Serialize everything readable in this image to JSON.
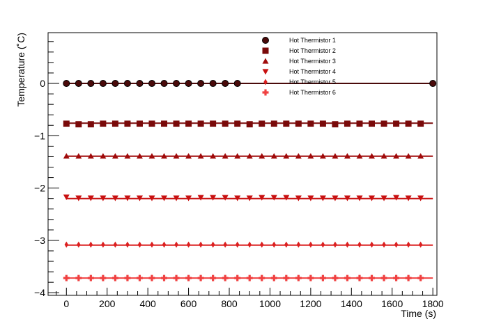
{
  "chart_data": {
    "type": "scatter",
    "title": "",
    "xlabel": "Time (s)",
    "ylabel": "Temperature (˚C)",
    "xlim": [
      -90,
      1820
    ],
    "ylim": [
      -4.05,
      0.97
    ],
    "x_ticks": [
      0,
      200,
      400,
      600,
      800,
      1000,
      1200,
      1400,
      1600,
      1800
    ],
    "x_tick_labels": [
      "0",
      "200",
      "400",
      "600",
      "800",
      "1000",
      "1200",
      "1400",
      "1600",
      "1800"
    ],
    "y_ticks": [
      0,
      -1,
      -2,
      -3,
      -4
    ],
    "y_tick_labels": [
      "0",
      "−1",
      "−2",
      "−3",
      "−4"
    ],
    "grid": false,
    "legend_position": "top-right",
    "series": [
      {
        "name": "Hot Thermistor 1",
        "marker": "circle",
        "color": "#4a0a0a",
        "line_value": 0.0,
        "line_x": [
          0,
          1800
        ],
        "x": [
          0,
          60,
          120,
          180,
          240,
          300,
          360,
          420,
          480,
          540,
          600,
          660,
          720,
          780,
          840,
          1800
        ],
        "y": [
          0,
          0,
          0,
          0,
          0,
          0,
          0,
          0,
          0,
          0,
          0,
          0,
          0,
          0,
          0,
          0
        ]
      },
      {
        "name": "Hot Thermistor 2",
        "marker": "square",
        "color": "#7a0a0a",
        "line_value": -0.76,
        "line_x": [
          0,
          1800
        ],
        "x": [
          0,
          60,
          120,
          180,
          240,
          300,
          360,
          420,
          480,
          540,
          600,
          660,
          720,
          780,
          840,
          900,
          960,
          1020,
          1080,
          1140,
          1200,
          1260,
          1320,
          1380,
          1440,
          1500,
          1560,
          1620,
          1680,
          1740
        ],
        "y": [
          -0.77,
          -0.78,
          -0.78,
          -0.77,
          -0.77,
          -0.77,
          -0.77,
          -0.77,
          -0.77,
          -0.77,
          -0.77,
          -0.77,
          -0.77,
          -0.77,
          -0.77,
          -0.78,
          -0.77,
          -0.77,
          -0.77,
          -0.77,
          -0.77,
          -0.77,
          -0.78,
          -0.77,
          -0.77,
          -0.77,
          -0.77,
          -0.77,
          -0.77,
          -0.77
        ]
      },
      {
        "name": "Hot Thermistor 3",
        "marker": "triangle-up",
        "color": "#a00a0a",
        "line_value": -1.39,
        "line_x": [
          0,
          1800
        ],
        "x": [
          0,
          60,
          120,
          180,
          240,
          300,
          360,
          420,
          480,
          540,
          600,
          660,
          720,
          780,
          840,
          900,
          960,
          1020,
          1080,
          1140,
          1200,
          1260,
          1320,
          1380,
          1440,
          1500,
          1560,
          1620,
          1680,
          1740
        ],
        "y": [
          -1.39,
          -1.39,
          -1.39,
          -1.39,
          -1.39,
          -1.39,
          -1.39,
          -1.39,
          -1.39,
          -1.39,
          -1.39,
          -1.39,
          -1.39,
          -1.39,
          -1.39,
          -1.39,
          -1.39,
          -1.39,
          -1.39,
          -1.39,
          -1.39,
          -1.39,
          -1.39,
          -1.39,
          -1.39,
          -1.39,
          -1.39,
          -1.39,
          -1.39,
          -1.39
        ]
      },
      {
        "name": "Hot Thermistor 4",
        "marker": "triangle-down",
        "color": "#c81010",
        "line_value": -2.2,
        "line_x": [
          0,
          1800
        ],
        "x": [
          0,
          60,
          120,
          180,
          240,
          300,
          360,
          420,
          480,
          540,
          600,
          660,
          720,
          780,
          840,
          900,
          960,
          1020,
          1080,
          1140,
          1200,
          1260,
          1320,
          1380,
          1440,
          1500,
          1560,
          1620,
          1680,
          1740
        ],
        "y": [
          -2.17,
          -2.19,
          -2.19,
          -2.19,
          -2.19,
          -2.19,
          -2.19,
          -2.19,
          -2.19,
          -2.19,
          -2.19,
          -2.18,
          -2.18,
          -2.18,
          -2.19,
          -2.19,
          -2.18,
          -2.18,
          -2.18,
          -2.19,
          -2.19,
          -2.19,
          -2.19,
          -2.19,
          -2.19,
          -2.19,
          -2.19,
          -2.18,
          -2.19,
          -2.19
        ]
      },
      {
        "name": "Hot Thermistor 5",
        "marker": "diamond",
        "color": "#dc2020",
        "line_value": -3.09,
        "line_x": [
          0,
          1800
        ],
        "x": [
          0,
          60,
          120,
          180,
          240,
          300,
          360,
          420,
          480,
          540,
          600,
          660,
          720,
          780,
          840,
          900,
          960,
          1020,
          1080,
          1140,
          1200,
          1260,
          1320,
          1380,
          1440,
          1500,
          1560,
          1620,
          1680,
          1740
        ],
        "y": [
          -3.08,
          -3.08,
          -3.08,
          -3.08,
          -3.08,
          -3.08,
          -3.08,
          -3.08,
          -3.08,
          -3.08,
          -3.08,
          -3.08,
          -3.08,
          -3.08,
          -3.08,
          -3.08,
          -3.08,
          -3.08,
          -3.08,
          -3.08,
          -3.08,
          -3.08,
          -3.08,
          -3.08,
          -3.08,
          -3.08,
          -3.08,
          -3.08,
          -3.08,
          -3.08
        ]
      },
      {
        "name": "Hot Thermistor 6",
        "marker": "cross",
        "color": "#f04040",
        "line_value": -3.72,
        "line_x": [
          0,
          1800
        ],
        "x": [
          0,
          60,
          120,
          180,
          240,
          300,
          360,
          420,
          480,
          540,
          600,
          660,
          720,
          780,
          840,
          900,
          960,
          1020,
          1080,
          1140,
          1200,
          1260,
          1320,
          1380,
          1440,
          1500,
          1560,
          1620,
          1680,
          1740
        ],
        "y": [
          -3.72,
          -3.72,
          -3.72,
          -3.72,
          -3.72,
          -3.72,
          -3.72,
          -3.72,
          -3.72,
          -3.72,
          -3.72,
          -3.72,
          -3.72,
          -3.72,
          -3.72,
          -3.72,
          -3.72,
          -3.72,
          -3.72,
          -3.72,
          -3.72,
          -3.72,
          -3.72,
          -3.72,
          -3.72,
          -3.72,
          -3.72,
          -3.72,
          -3.72,
          -3.72
        ]
      }
    ]
  }
}
